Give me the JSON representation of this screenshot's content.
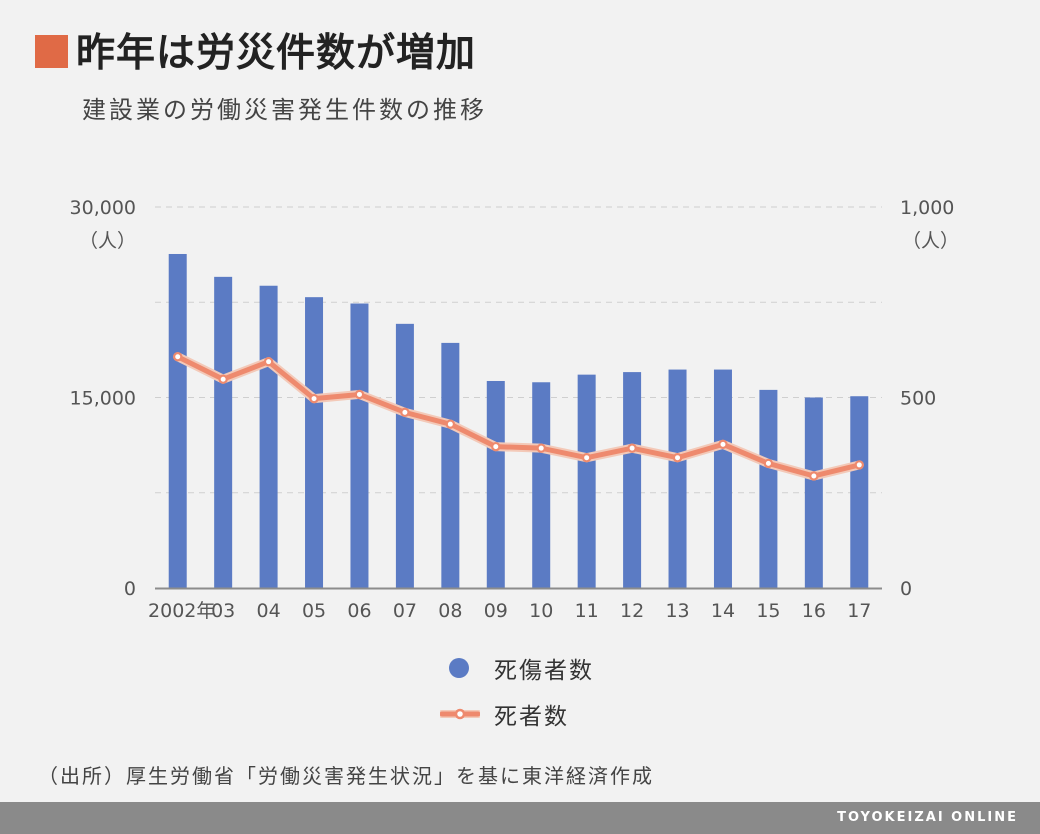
{
  "header": {
    "title": "昨年は労災件数が増加",
    "subtitle": "建設業の労働災害発生件数の推移",
    "accent_color": "#e06a46"
  },
  "chart_data": {
    "type": "bar",
    "categories": [
      "2002年",
      "03",
      "04",
      "05",
      "06",
      "07",
      "08",
      "09",
      "10",
      "11",
      "12",
      "13",
      "14",
      "15",
      "16",
      "17"
    ],
    "series": [
      {
        "name": "死傷者数",
        "type": "bar",
        "axis": "left",
        "color": "#5b7bc4",
        "values": [
          26300,
          24500,
          23800,
          22900,
          22400,
          20800,
          19300,
          16300,
          16200,
          16800,
          17000,
          17200,
          17200,
          15600,
          15000,
          15100
        ]
      },
      {
        "name": "死者数",
        "type": "line",
        "axis": "right",
        "color": "#ee8a6e",
        "values": [
          607,
          548,
          594,
          497,
          508,
          461,
          430,
          371,
          367,
          342,
          367,
          342,
          377,
          327,
          294,
          323
        ]
      }
    ],
    "y_left": {
      "ylim": [
        0,
        30000
      ],
      "ticks": [
        "0",
        "15,000",
        "30,000"
      ],
      "unit": "（人）"
    },
    "y_right": {
      "ylim": [
        0,
        1000
      ],
      "ticks": [
        "0",
        "500",
        "1,000"
      ],
      "unit": "（人）"
    },
    "grid": true,
    "legend_position": "bottom-center"
  },
  "legend": {
    "items": [
      {
        "label": "死傷者数",
        "icon": "blue-dot-icon"
      },
      {
        "label": "死者数",
        "icon": "orange-line-marker-icon"
      }
    ]
  },
  "source": "（出所）厚生労働省「労働災害発生状況」を基に東洋経済作成",
  "footer": {
    "brand": "TOYOKEIZAI ONLINE"
  }
}
